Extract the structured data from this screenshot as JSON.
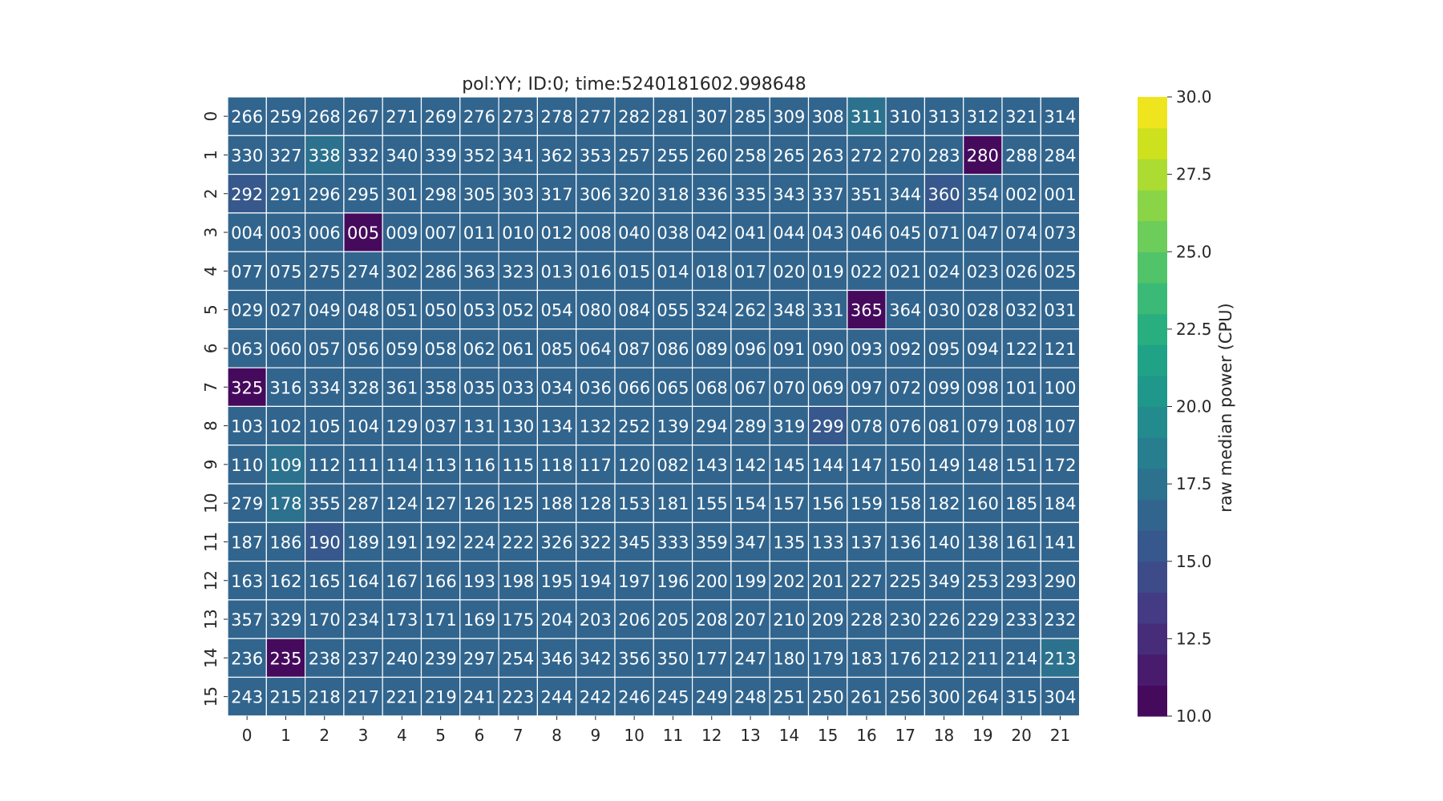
{
  "chart_data": {
    "type": "heatmap",
    "title": "pol:YY; ID:0; time:5240181602.998648",
    "x_tick_labels": [
      "0",
      "1",
      "2",
      "3",
      "4",
      "5",
      "6",
      "7",
      "8",
      "9",
      "10",
      "11",
      "12",
      "13",
      "14",
      "15",
      "16",
      "17",
      "18",
      "19",
      "20",
      "21"
    ],
    "y_tick_labels": [
      "0",
      "1",
      "2",
      "3",
      "4",
      "5",
      "6",
      "7",
      "8",
      "9",
      "10",
      "11",
      "12",
      "13",
      "14",
      "15"
    ],
    "annotations": [
      [
        "266",
        "259",
        "268",
        "267",
        "271",
        "269",
        "276",
        "273",
        "278",
        "277",
        "282",
        "281",
        "307",
        "285",
        "309",
        "308",
        "311",
        "310",
        "313",
        "312",
        "321",
        "314"
      ],
      [
        "330",
        "327",
        "338",
        "332",
        "340",
        "339",
        "352",
        "341",
        "362",
        "353",
        "257",
        "255",
        "260",
        "258",
        "265",
        "263",
        "272",
        "270",
        "283",
        "280",
        "288",
        "284"
      ],
      [
        "292",
        "291",
        "296",
        "295",
        "301",
        "298",
        "305",
        "303",
        "317",
        "306",
        "320",
        "318",
        "336",
        "335",
        "343",
        "337",
        "351",
        "344",
        "360",
        "354",
        "002",
        "001"
      ],
      [
        "004",
        "003",
        "006",
        "005",
        "009",
        "007",
        "011",
        "010",
        "012",
        "008",
        "040",
        "038",
        "042",
        "041",
        "044",
        "043",
        "046",
        "045",
        "071",
        "047",
        "074",
        "073"
      ],
      [
        "077",
        "075",
        "275",
        "274",
        "302",
        "286",
        "363",
        "323",
        "013",
        "016",
        "015",
        "014",
        "018",
        "017",
        "020",
        "019",
        "022",
        "021",
        "024",
        "023",
        "026",
        "025"
      ],
      [
        "029",
        "027",
        "049",
        "048",
        "051",
        "050",
        "053",
        "052",
        "054",
        "080",
        "084",
        "055",
        "324",
        "262",
        "348",
        "331",
        "365",
        "364",
        "030",
        "028",
        "032",
        "031"
      ],
      [
        "063",
        "060",
        "057",
        "056",
        "059",
        "058",
        "062",
        "061",
        "085",
        "064",
        "087",
        "086",
        "089",
        "096",
        "091",
        "090",
        "093",
        "092",
        "095",
        "094",
        "122",
        "121"
      ],
      [
        "325",
        "316",
        "334",
        "328",
        "361",
        "358",
        "035",
        "033",
        "034",
        "036",
        "066",
        "065",
        "068",
        "067",
        "070",
        "069",
        "097",
        "072",
        "099",
        "098",
        "101",
        "100"
      ],
      [
        "103",
        "102",
        "105",
        "104",
        "129",
        "037",
        "131",
        "130",
        "134",
        "132",
        "252",
        "139",
        "294",
        "289",
        "319",
        "299",
        "078",
        "076",
        "081",
        "079",
        "108",
        "107"
      ],
      [
        "110",
        "109",
        "112",
        "111",
        "114",
        "113",
        "116",
        "115",
        "118",
        "117",
        "120",
        "082",
        "143",
        "142",
        "145",
        "144",
        "147",
        "150",
        "149",
        "148",
        "151",
        "172"
      ],
      [
        "279",
        "178",
        "355",
        "287",
        "124",
        "127",
        "126",
        "125",
        "188",
        "128",
        "153",
        "181",
        "155",
        "154",
        "157",
        "156",
        "159",
        "158",
        "182",
        "160",
        "185",
        "184"
      ],
      [
        "187",
        "186",
        "190",
        "189",
        "191",
        "192",
        "224",
        "222",
        "326",
        "322",
        "345",
        "333",
        "359",
        "347",
        "135",
        "133",
        "137",
        "136",
        "140",
        "138",
        "161",
        "141"
      ],
      [
        "163",
        "162",
        "165",
        "164",
        "167",
        "166",
        "193",
        "198",
        "195",
        "194",
        "197",
        "196",
        "200",
        "199",
        "202",
        "201",
        "227",
        "225",
        "349",
        "253",
        "293",
        "290"
      ],
      [
        "357",
        "329",
        "170",
        "234",
        "173",
        "171",
        "169",
        "175",
        "204",
        "203",
        "206",
        "205",
        "208",
        "207",
        "210",
        "209",
        "228",
        "230",
        "226",
        "229",
        "233",
        "232"
      ],
      [
        "236",
        "235",
        "238",
        "237",
        "240",
        "239",
        "297",
        "254",
        "346",
        "342",
        "356",
        "350",
        "177",
        "247",
        "180",
        "179",
        "183",
        "176",
        "212",
        "211",
        "214",
        "213"
      ],
      [
        "243",
        "215",
        "218",
        "217",
        "221",
        "219",
        "241",
        "223",
        "244",
        "242",
        "246",
        "245",
        "249",
        "248",
        "251",
        "250",
        "261",
        "256",
        "300",
        "264",
        "315",
        "304"
      ]
    ],
    "values": [
      [
        16.3,
        16.1,
        16.0,
        16.2,
        16.0,
        16.1,
        16.2,
        16.0,
        16.1,
        16.1,
        16.2,
        16.1,
        16.2,
        16.3,
        16.1,
        16.2,
        17.0,
        16.4,
        16.1,
        16.2,
        16.0,
        16.2
      ],
      [
        16.4,
        16.2,
        17.2,
        16.3,
        16.0,
        16.2,
        16.0,
        16.1,
        16.0,
        16.2,
        16.0,
        16.1,
        16.1,
        16.1,
        16.0,
        16.1,
        16.1,
        16.1,
        16.0,
        10.1,
        16.1,
        16.0
      ],
      [
        15.5,
        16.0,
        16.0,
        16.1,
        16.0,
        16.0,
        16.0,
        16.1,
        16.1,
        16.5,
        16.8,
        16.1,
        16.0,
        16.1,
        16.1,
        16.0,
        16.1,
        16.0,
        15.4,
        16.0,
        16.0,
        16.0
      ],
      [
        16.0,
        16.1,
        16.0,
        10.1,
        16.0,
        16.1,
        16.0,
        16.1,
        16.0,
        16.0,
        16.4,
        16.1,
        16.0,
        16.6,
        16.0,
        16.1,
        16.0,
        16.1,
        16.0,
        16.1,
        16.0,
        16.0
      ],
      [
        16.1,
        16.0,
        16.0,
        16.1,
        16.0,
        16.0,
        16.1,
        16.0,
        16.0,
        16.1,
        16.0,
        16.1,
        16.0,
        16.1,
        16.7,
        16.0,
        16.1,
        16.0,
        16.0,
        16.1,
        16.0,
        16.0
      ],
      [
        16.0,
        16.1,
        16.0,
        16.0,
        16.0,
        16.1,
        16.0,
        16.0,
        16.1,
        16.0,
        16.0,
        16.1,
        16.0,
        16.1,
        16.0,
        16.8,
        10.1,
        16.1,
        16.0,
        16.0,
        16.0,
        16.0
      ],
      [
        16.1,
        16.0,
        16.0,
        16.0,
        16.1,
        16.0,
        16.1,
        16.0,
        16.0,
        16.0,
        16.1,
        16.0,
        16.0,
        16.0,
        16.0,
        16.1,
        16.0,
        16.0,
        16.1,
        16.0,
        16.0,
        16.0
      ],
      [
        10.2,
        16.0,
        16.1,
        16.0,
        16.0,
        16.5,
        16.1,
        16.0,
        16.0,
        16.1,
        16.4,
        16.0,
        16.1,
        16.0,
        16.0,
        16.1,
        16.0,
        16.0,
        16.0,
        16.0,
        16.0,
        16.0
      ],
      [
        16.1,
        16.0,
        16.1,
        16.0,
        16.0,
        16.1,
        16.0,
        16.0,
        16.0,
        16.1,
        16.9,
        16.0,
        16.0,
        16.0,
        16.0,
        15.3,
        16.1,
        16.0,
        16.0,
        16.1,
        16.0,
        16.0
      ],
      [
        16.1,
        17.3,
        16.1,
        16.0,
        16.0,
        16.0,
        16.1,
        16.0,
        16.0,
        16.1,
        16.9,
        16.0,
        16.0,
        16.1,
        16.0,
        16.0,
        16.0,
        16.1,
        16.0,
        16.2,
        16.0,
        16.1
      ],
      [
        16.2,
        17.0,
        16.0,
        16.0,
        16.1,
        16.0,
        16.3,
        16.0,
        16.1,
        16.0,
        16.2,
        16.0,
        16.1,
        16.0,
        16.0,
        16.1,
        16.0,
        16.0,
        16.1,
        16.0,
        16.0,
        16.2
      ],
      [
        16.2,
        16.3,
        15.2,
        16.0,
        16.0,
        16.1,
        16.0,
        16.0,
        16.1,
        16.0,
        16.0,
        16.1,
        16.0,
        16.0,
        16.0,
        16.1,
        16.0,
        16.0,
        16.1,
        16.0,
        16.1,
        16.0
      ],
      [
        16.0,
        16.1,
        16.6,
        16.0,
        16.1,
        16.0,
        16.8,
        16.0,
        16.0,
        16.1,
        16.0,
        16.0,
        16.1,
        16.0,
        16.0,
        16.1,
        16.0,
        16.0,
        16.1,
        16.0,
        16.0,
        16.0
      ],
      [
        16.0,
        16.1,
        16.0,
        16.9,
        16.7,
        16.0,
        16.2,
        16.0,
        16.1,
        16.0,
        16.0,
        16.1,
        16.0,
        16.0,
        16.1,
        16.0,
        16.0,
        16.1,
        16.0,
        16.0,
        16.1,
        16.0
      ],
      [
        16.2,
        10.1,
        16.0,
        16.1,
        16.0,
        16.2,
        16.0,
        16.1,
        16.0,
        16.0,
        16.1,
        16.0,
        16.0,
        16.1,
        16.0,
        16.0,
        16.1,
        16.0,
        16.1,
        16.0,
        16.1,
        17.4
      ],
      [
        16.0,
        16.2,
        16.0,
        16.1,
        16.0,
        16.2,
        16.6,
        16.0,
        16.1,
        16.2,
        16.4,
        16.1,
        16.2,
        16.0,
        16.1,
        16.2,
        16.0,
        16.1,
        16.2,
        16.1,
        16.8,
        16.2
      ]
    ],
    "colorbar": {
      "label": "raw median power (CPU)",
      "range": [
        10.0,
        30.0
      ],
      "tick_labels": [
        "10.0",
        "12.5",
        "15.0",
        "17.5",
        "20.0",
        "22.5",
        "25.0",
        "27.5",
        "30.0"
      ],
      "tick_values": [
        10.0,
        12.5,
        15.0,
        17.5,
        20.0,
        22.5,
        25.0,
        27.5,
        30.0
      ],
      "colormap": "viridis",
      "levels": 20
    },
    "cell_text_color": "#ffffff",
    "grid_line_color": "#ffffff"
  }
}
